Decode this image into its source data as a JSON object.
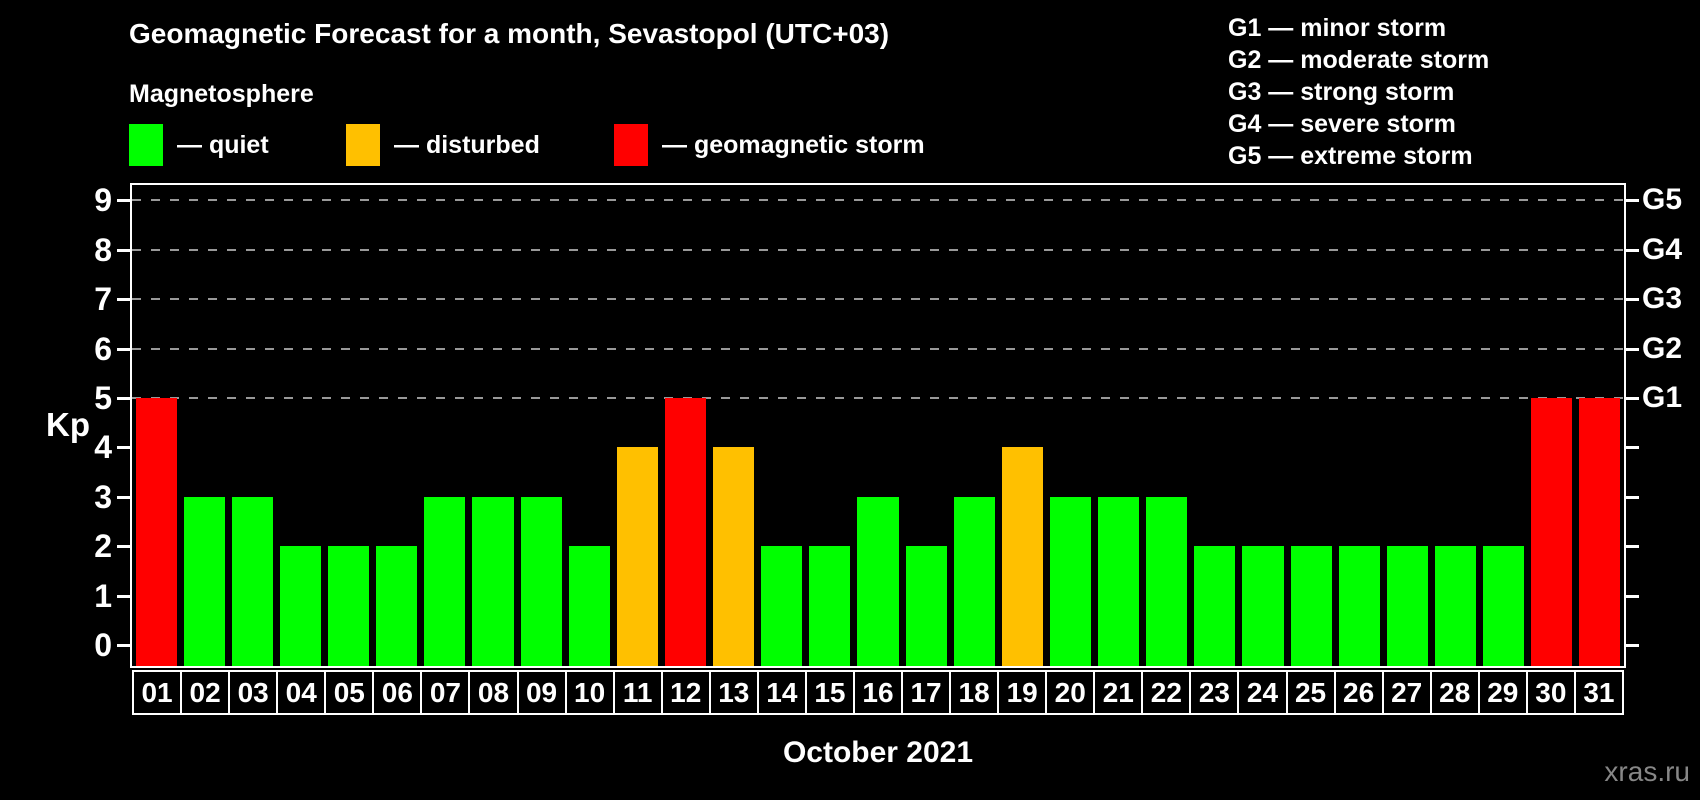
{
  "header": {
    "title": "Geomagnetic Forecast for a month, Sevastopol (UTC+03)",
    "subtitle": "Magnetosphere"
  },
  "legend": {
    "items": [
      {
        "name": "quiet",
        "label": "— quiet",
        "color": "#00ff00"
      },
      {
        "name": "disturbed",
        "label": "— disturbed",
        "color": "#ffc000"
      },
      {
        "name": "storm",
        "label": "— geomagnetic storm",
        "color": "#ff0000"
      }
    ]
  },
  "storm_scale_legend": [
    "G1 — minor storm",
    "G2 — moderate storm",
    "G3 — strong storm",
    "G4 — severe storm",
    "G5 — extreme storm"
  ],
  "watermark": "xras.ru",
  "chart_data": {
    "type": "bar",
    "title": "Geomagnetic Forecast for a month, Sevastopol (UTC+03)",
    "xlabel": "October 2021",
    "ylabel": "Kp",
    "ylim": [
      0,
      9
    ],
    "grid": "dashed horizontal at Kp 5-9",
    "legend_position": "top",
    "categories": [
      "01",
      "02",
      "03",
      "04",
      "05",
      "06",
      "07",
      "08",
      "09",
      "10",
      "11",
      "12",
      "13",
      "14",
      "15",
      "16",
      "17",
      "18",
      "19",
      "20",
      "21",
      "22",
      "23",
      "24",
      "25",
      "26",
      "27",
      "28",
      "29",
      "30",
      "31"
    ],
    "values": [
      5,
      3,
      3,
      2,
      2,
      2,
      3,
      3,
      3,
      2,
      4,
      5,
      4,
      2,
      2,
      3,
      2,
      3,
      4,
      3,
      3,
      3,
      2,
      2,
      2,
      2,
      2,
      2,
      2,
      5,
      5
    ],
    "colors": {
      "quiet": "#00ff00",
      "disturbed": "#ffc000",
      "storm": "#ff0000"
    },
    "color_rule": {
      "quiet_kp_max": 3,
      "disturbed_kp": 4,
      "storm_kp_min": 5
    },
    "y_ticks": [
      0,
      1,
      2,
      3,
      4,
      5,
      6,
      7,
      8,
      9
    ],
    "gridlines_kp": [
      5,
      6,
      7,
      8,
      9
    ],
    "right_axis_labels": [
      "G1",
      "G2",
      "G3",
      "G4",
      "G5"
    ],
    "right_axis_kp": [
      5,
      6,
      7,
      8,
      9
    ],
    "gridline_color": "#999999"
  }
}
